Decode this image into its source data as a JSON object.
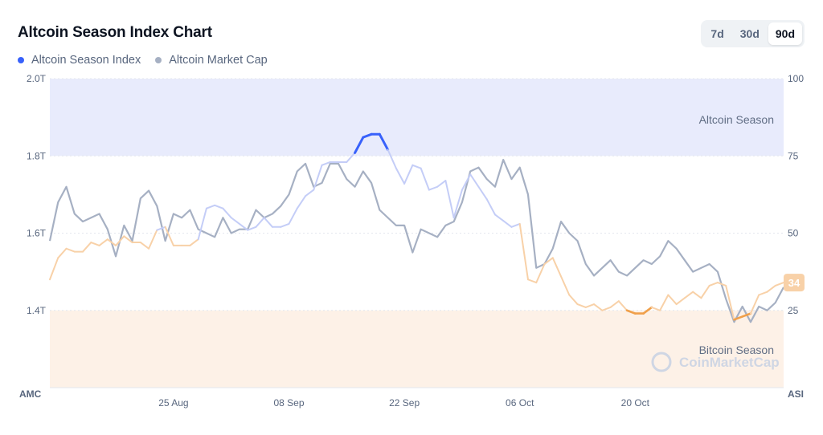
{
  "header": {
    "title": "Altcoin Season Index Chart",
    "legend": [
      {
        "label": "Altcoin Season Index",
        "color": "#3861fb"
      },
      {
        "label": "Altcoin Market Cap",
        "color": "#a6b0c3"
      }
    ],
    "ranges": [
      {
        "label": "7d",
        "active": false
      },
      {
        "label": "30d",
        "active": false
      },
      {
        "label": "90d",
        "active": true
      }
    ]
  },
  "watermark": "CoinMarketCap",
  "colors": {
    "index_line": "#3861fb",
    "index_line_light": "#c4cdf7",
    "index_line_orange": "#f0a04b",
    "index_line_orange_light": "#f8d1a8",
    "market_cap_line": "#a6b0c3",
    "altcoin_zone": "#e8ebfc",
    "bitcoin_zone": "#fdf1e7",
    "badge": "#f8d1a8"
  },
  "chart_data": {
    "type": "line",
    "title": "Altcoin Season Index Chart",
    "x_ticks": [
      "25 Aug",
      "08 Sep",
      "22 Sep",
      "06 Oct",
      "20 Oct"
    ],
    "x_range": [
      "2024-08-10",
      "2024-11-07"
    ],
    "left_axis": {
      "label": "AMC",
      "ticks": [
        "2.0T",
        "1.8T",
        "1.6T",
        "1.4T"
      ],
      "range": [
        1.2,
        2.0
      ],
      "unit": "T"
    },
    "right_axis": {
      "label": "ASI",
      "ticks": [
        "100",
        "75",
        "50",
        "25"
      ],
      "range": [
        0,
        100
      ]
    },
    "zones": [
      {
        "label": "Altcoin Season",
        "from": 75,
        "to": 100
      },
      {
        "label": "Bitcoin Season",
        "from": 0,
        "to": 25
      }
    ],
    "current_value_badge": "34",
    "series": [
      {
        "name": "Altcoin Season Index",
        "axis": "right",
        "points": [
          [
            "2024-08-10",
            35
          ],
          [
            "2024-08-11",
            42
          ],
          [
            "2024-08-12",
            45
          ],
          [
            "2024-08-13",
            44
          ],
          [
            "2024-08-14",
            44
          ],
          [
            "2024-08-15",
            47
          ],
          [
            "2024-08-16",
            46
          ],
          [
            "2024-08-17",
            48
          ],
          [
            "2024-08-18",
            46
          ],
          [
            "2024-08-19",
            49
          ],
          [
            "2024-08-20",
            47
          ],
          [
            "2024-08-21",
            47
          ],
          [
            "2024-08-22",
            45
          ],
          [
            "2024-08-23",
            51
          ],
          [
            "2024-08-24",
            52
          ],
          [
            "2024-08-25",
            46
          ],
          [
            "2024-08-26",
            46
          ],
          [
            "2024-08-27",
            46
          ],
          [
            "2024-08-28",
            48
          ],
          [
            "2024-08-29",
            58
          ],
          [
            "2024-08-30",
            59
          ],
          [
            "2024-08-31",
            58
          ],
          [
            "2024-09-01",
            55
          ],
          [
            "2024-09-02",
            53
          ],
          [
            "2024-09-03",
            51
          ],
          [
            "2024-09-04",
            52
          ],
          [
            "2024-09-05",
            55
          ],
          [
            "2024-09-06",
            52
          ],
          [
            "2024-09-07",
            52
          ],
          [
            "2024-09-08",
            53
          ],
          [
            "2024-09-09",
            58
          ],
          [
            "2024-09-10",
            62
          ],
          [
            "2024-09-11",
            64
          ],
          [
            "2024-09-12",
            72
          ],
          [
            "2024-09-13",
            73
          ],
          [
            "2024-09-14",
            73
          ],
          [
            "2024-09-15",
            73
          ],
          [
            "2024-09-16",
            76
          ],
          [
            "2024-09-17",
            81
          ],
          [
            "2024-09-18",
            82
          ],
          [
            "2024-09-19",
            82
          ],
          [
            "2024-09-20",
            77
          ],
          [
            "2024-09-21",
            71
          ],
          [
            "2024-09-22",
            66
          ],
          [
            "2024-09-23",
            72
          ],
          [
            "2024-09-24",
            71
          ],
          [
            "2024-09-25",
            64
          ],
          [
            "2024-09-26",
            65
          ],
          [
            "2024-09-27",
            67
          ],
          [
            "2024-09-28",
            55
          ],
          [
            "2024-09-29",
            64
          ],
          [
            "2024-09-30",
            69
          ],
          [
            "2024-10-01",
            65
          ],
          [
            "2024-10-02",
            61
          ],
          [
            "2024-10-03",
            56
          ],
          [
            "2024-10-04",
            54
          ],
          [
            "2024-10-05",
            52
          ],
          [
            "2024-10-06",
            53
          ],
          [
            "2024-10-07",
            35
          ],
          [
            "2024-10-08",
            34
          ],
          [
            "2024-10-09",
            40
          ],
          [
            "2024-10-10",
            42
          ],
          [
            "2024-10-11",
            36
          ],
          [
            "2024-10-12",
            30
          ],
          [
            "2024-10-13",
            27
          ],
          [
            "2024-10-14",
            26
          ],
          [
            "2024-10-15",
            27
          ],
          [
            "2024-10-16",
            25
          ],
          [
            "2024-10-17",
            26
          ],
          [
            "2024-10-18",
            28
          ],
          [
            "2024-10-19",
            25
          ],
          [
            "2024-10-20",
            24
          ],
          [
            "2024-10-21",
            24
          ],
          [
            "2024-10-22",
            26
          ],
          [
            "2024-10-23",
            25
          ],
          [
            "2024-10-24",
            30
          ],
          [
            "2024-10-25",
            27
          ],
          [
            "2024-10-26",
            29
          ],
          [
            "2024-10-27",
            31
          ],
          [
            "2024-10-28",
            29
          ],
          [
            "2024-10-29",
            33
          ],
          [
            "2024-10-30",
            34
          ],
          [
            "2024-10-31",
            33
          ],
          [
            "2024-11-01",
            22
          ],
          [
            "2024-11-02",
            23
          ],
          [
            "2024-11-03",
            24
          ],
          [
            "2024-11-04",
            30
          ],
          [
            "2024-11-05",
            31
          ],
          [
            "2024-11-06",
            33
          ],
          [
            "2024-11-07",
            34
          ]
        ]
      },
      {
        "name": "Altcoin Market Cap",
        "axis": "left",
        "points": [
          [
            "2024-08-10",
            1.58
          ],
          [
            "2024-08-11",
            1.68
          ],
          [
            "2024-08-12",
            1.72
          ],
          [
            "2024-08-13",
            1.65
          ],
          [
            "2024-08-14",
            1.63
          ],
          [
            "2024-08-15",
            1.64
          ],
          [
            "2024-08-16",
            1.65
          ],
          [
            "2024-08-17",
            1.61
          ],
          [
            "2024-08-18",
            1.54
          ],
          [
            "2024-08-19",
            1.62
          ],
          [
            "2024-08-20",
            1.58
          ],
          [
            "2024-08-21",
            1.69
          ],
          [
            "2024-08-22",
            1.71
          ],
          [
            "2024-08-23",
            1.67
          ],
          [
            "2024-08-24",
            1.58
          ],
          [
            "2024-08-25",
            1.65
          ],
          [
            "2024-08-26",
            1.64
          ],
          [
            "2024-08-27",
            1.66
          ],
          [
            "2024-08-28",
            1.61
          ],
          [
            "2024-08-29",
            1.6
          ],
          [
            "2024-08-30",
            1.59
          ],
          [
            "2024-08-31",
            1.64
          ],
          [
            "2024-09-01",
            1.6
          ],
          [
            "2024-09-02",
            1.61
          ],
          [
            "2024-09-03",
            1.61
          ],
          [
            "2024-09-04",
            1.66
          ],
          [
            "2024-09-05",
            1.64
          ],
          [
            "2024-09-06",
            1.65
          ],
          [
            "2024-09-07",
            1.67
          ],
          [
            "2024-09-08",
            1.7
          ],
          [
            "2024-09-09",
            1.76
          ],
          [
            "2024-09-10",
            1.78
          ],
          [
            "2024-09-11",
            1.72
          ],
          [
            "2024-09-12",
            1.73
          ],
          [
            "2024-09-13",
            1.78
          ],
          [
            "2024-09-14",
            1.78
          ],
          [
            "2024-09-15",
            1.74
          ],
          [
            "2024-09-16",
            1.72
          ],
          [
            "2024-09-17",
            1.76
          ],
          [
            "2024-09-18",
            1.73
          ],
          [
            "2024-09-19",
            1.66
          ],
          [
            "2024-09-20",
            1.64
          ],
          [
            "2024-09-21",
            1.62
          ],
          [
            "2024-09-22",
            1.62
          ],
          [
            "2024-09-23",
            1.55
          ],
          [
            "2024-09-24",
            1.61
          ],
          [
            "2024-09-25",
            1.6
          ],
          [
            "2024-09-26",
            1.59
          ],
          [
            "2024-09-27",
            1.62
          ],
          [
            "2024-09-28",
            1.63
          ],
          [
            "2024-09-29",
            1.68
          ],
          [
            "2024-09-30",
            1.76
          ],
          [
            "2024-10-01",
            1.77
          ],
          [
            "2024-10-02",
            1.74
          ],
          [
            "2024-10-03",
            1.72
          ],
          [
            "2024-10-04",
            1.79
          ],
          [
            "2024-10-05",
            1.74
          ],
          [
            "2024-10-06",
            1.77
          ],
          [
            "2024-10-07",
            1.7
          ],
          [
            "2024-10-08",
            1.51
          ],
          [
            "2024-10-09",
            1.52
          ],
          [
            "2024-10-10",
            1.56
          ],
          [
            "2024-10-11",
            1.63
          ],
          [
            "2024-10-12",
            1.6
          ],
          [
            "2024-10-13",
            1.58
          ],
          [
            "2024-10-14",
            1.52
          ],
          [
            "2024-10-15",
            1.49
          ],
          [
            "2024-10-16",
            1.51
          ],
          [
            "2024-10-17",
            1.53
          ],
          [
            "2024-10-18",
            1.5
          ],
          [
            "2024-10-19",
            1.49
          ],
          [
            "2024-10-20",
            1.51
          ],
          [
            "2024-10-21",
            1.53
          ],
          [
            "2024-10-22",
            1.52
          ],
          [
            "2024-10-23",
            1.54
          ],
          [
            "2024-10-24",
            1.58
          ],
          [
            "2024-10-25",
            1.56
          ],
          [
            "2024-10-26",
            1.53
          ],
          [
            "2024-10-27",
            1.5
          ],
          [
            "2024-10-28",
            1.51
          ],
          [
            "2024-10-29",
            1.52
          ],
          [
            "2024-10-30",
            1.5
          ],
          [
            "2024-10-31",
            1.43
          ],
          [
            "2024-11-01",
            1.37
          ],
          [
            "2024-11-02",
            1.41
          ],
          [
            "2024-11-03",
            1.37
          ],
          [
            "2024-11-04",
            1.41
          ],
          [
            "2024-11-05",
            1.4
          ],
          [
            "2024-11-06",
            1.42
          ],
          [
            "2024-11-07",
            1.46
          ]
        ]
      }
    ]
  }
}
